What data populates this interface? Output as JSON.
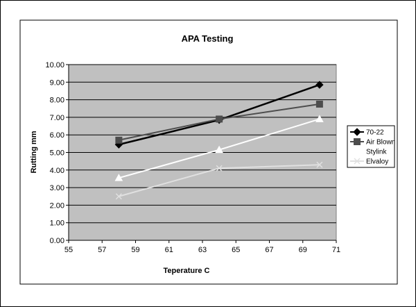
{
  "chart_data": {
    "type": "line",
    "title": "APA Testing",
    "xlabel": "Teperature C",
    "ylabel": "Rutting mm",
    "xlim": [
      55,
      71
    ],
    "ylim": [
      0,
      10
    ],
    "x_ticks": [
      "55",
      "57",
      "59",
      "61",
      "63",
      "65",
      "67",
      "69",
      "71"
    ],
    "y_ticks": [
      "0.00",
      "1.00",
      "2.00",
      "3.00",
      "4.00",
      "5.00",
      "6.00",
      "7.00",
      "8.00",
      "9.00",
      "10.00"
    ],
    "grid": "horizontal",
    "legend_position": "right",
    "plot_background": "#c0c0c0",
    "series": [
      {
        "name": "70-22",
        "marker": "diamond",
        "color": "#000000",
        "x": [
          58,
          64,
          70
        ],
        "values": [
          5.45,
          6.85,
          8.85
        ]
      },
      {
        "name": "Air Blown",
        "marker": "square",
        "color": "#4d4d4d",
        "x": [
          58,
          64,
          70
        ],
        "values": [
          5.7,
          6.9,
          7.75
        ]
      },
      {
        "name": "Stylink",
        "marker": "triangle",
        "color": "#ffffff",
        "x": [
          58,
          64,
          70
        ],
        "values": [
          3.55,
          5.15,
          6.9
        ]
      },
      {
        "name": "Elvaloy",
        "marker": "x",
        "color": "#e0e0e0",
        "x": [
          58,
          64,
          70
        ],
        "values": [
          2.5,
          4.1,
          4.3
        ]
      }
    ]
  }
}
